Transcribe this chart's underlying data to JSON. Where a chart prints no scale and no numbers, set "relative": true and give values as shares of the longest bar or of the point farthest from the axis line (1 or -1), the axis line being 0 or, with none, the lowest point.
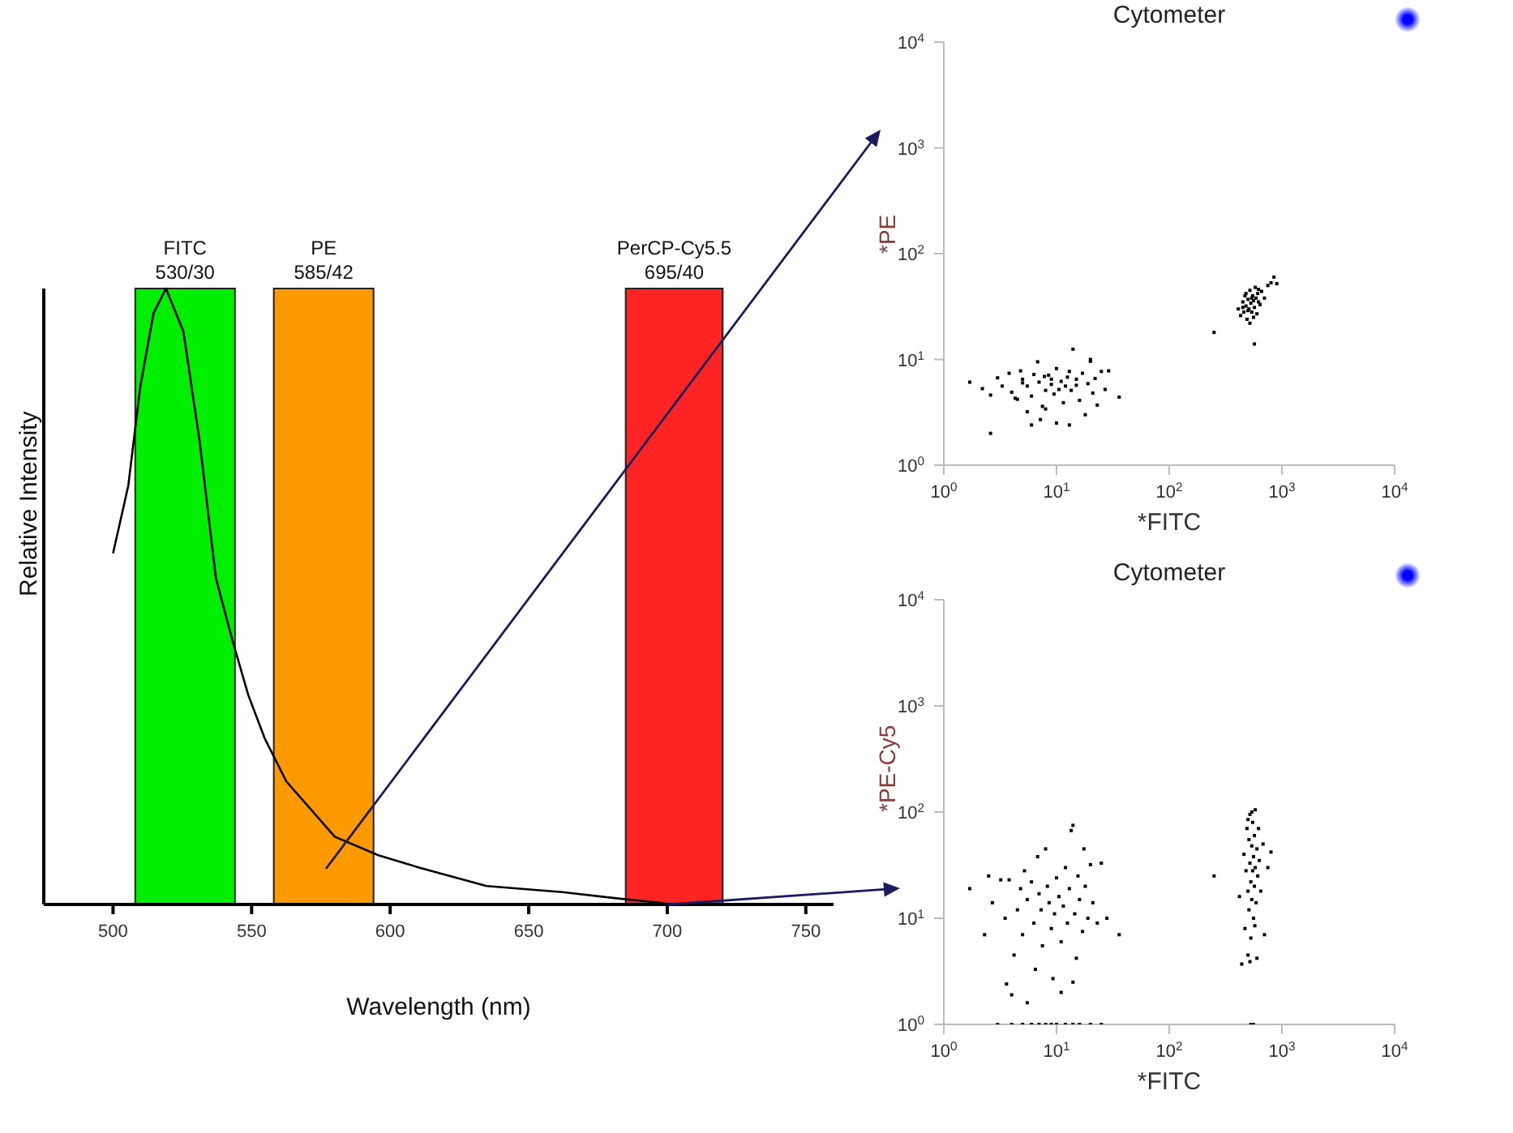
{
  "chart_data": [
    {
      "type": "line",
      "relative": true,
      "xlabel": "Wavelength (nm)",
      "ylabel": "Relative Intensity",
      "xlim": [
        475,
        760
      ],
      "xticks": [
        500,
        550,
        600,
        650,
        700,
        750
      ],
      "series": [
        {
          "color": "#000000",
          "x": [
            500,
            505.5,
            509.8,
            514.6,
            519.1,
            525.4,
            531.3,
            537.1,
            543,
            548.8,
            554.7,
            562.5,
            580,
            595.7,
            610.4,
            634.8,
            662.1,
            681.6,
            697.3,
            701.2
          ],
          "values": [
            0.57,
            0.68,
            0.84,
            0.96,
            1,
            0.93,
            0.75,
            0.53,
            0.43,
            0.34,
            0.27,
            0.2,
            0.11,
            0.08,
            0.06,
            0.03,
            0.02,
            0.01,
            0.003,
            0
          ]
        }
      ],
      "bands": [
        {
          "axis": "x",
          "from": 508,
          "to": 544,
          "label": "FITC\n530/30",
          "color": "#00ee00"
        },
        {
          "axis": "x",
          "from": 558,
          "to": 594,
          "label": "PE\n585/42",
          "color": "#ff9900"
        },
        {
          "axis": "x",
          "from": 685,
          "to": 720,
          "label": "PerCP-Cy5.5\n695/40",
          "color": "#ff2424"
        }
      ]
    },
    {
      "type": "scatter",
      "title": "Cytometer",
      "xlabel": "*FITC",
      "ylabel": "*PE",
      "log": "xy",
      "marker": "square",
      "xlim": [
        1,
        10000
      ],
      "ylim": [
        1,
        10000
      ],
      "xticks": [
        {
          "value": 1,
          "label": "10$^{0}$"
        },
        {
          "value": 10,
          "label": "10$^{1}$"
        },
        {
          "value": 100,
          "label": "10$^{2}$"
        },
        {
          "value": 1000,
          "label": "10$^{3}$"
        },
        {
          "value": 10000,
          "label": "10$^{4}$"
        }
      ],
      "yticks": [
        {
          "value": 1,
          "label": "10$^{0}$"
        },
        {
          "value": 10,
          "label": "10$^{1}$"
        },
        {
          "value": 100,
          "label": "10$^{2}$"
        },
        {
          "value": 1000,
          "label": "10$^{3}$"
        },
        {
          "value": 10000,
          "label": "10$^{4}$"
        }
      ],
      "series": [
        {
          "color": "#000000",
          "x": [
            1.7,
            2.2,
            2.6,
            2.6,
            3,
            3.3,
            3.8,
            4,
            4.5,
            5,
            4.8,
            5.5,
            6,
            6.3,
            6.8,
            7,
            7.5,
            8,
            8.5,
            9,
            9.5,
            10,
            11,
            11.5,
            12,
            13,
            13.5,
            14,
            15,
            16,
            17,
            18,
            19,
            20,
            21,
            22,
            23,
            25,
            27,
            29,
            36,
            6,
            7.2,
            10,
            13,
            5.5,
            8,
            20,
            5,
            4.3,
            9,
            10.5,
            12.5,
            15,
            7.8,
            250,
            570,
            410,
            430,
            450,
            460,
            470,
            480,
            490,
            500,
            510,
            520,
            530,
            540,
            550,
            560,
            570,
            580,
            590,
            600,
            610,
            620,
            640,
            660,
            700,
            750,
            800,
            850,
            900,
            520,
            480,
            560,
            540,
            500,
            620,
            450
          ],
          "values": [
            6.1,
            5.3,
            4.6,
            2,
            6.7,
            5.6,
            7.4,
            4.9,
            4.2,
            6.5,
            7.8,
            5.6,
            4.5,
            7.2,
            9.5,
            6.1,
            3.6,
            5.1,
            7.1,
            5.8,
            4.7,
            8.2,
            6.2,
            3.9,
            5.6,
            7.7,
            5.1,
            12.5,
            6.5,
            4.1,
            7.4,
            3,
            5.9,
            9.6,
            4.8,
            6.6,
            3.7,
            7.7,
            5.2,
            7.8,
            4.4,
            2.4,
            2.7,
            2.5,
            2.4,
            3.2,
            3.4,
            10,
            6,
            4.3,
            6.5,
            5.2,
            6.8,
            5.7,
            6.9,
            18,
            14,
            30,
            26,
            35,
            28,
            40,
            32,
            24,
            37,
            30,
            45,
            34,
            28,
            40,
            36,
            31,
            48,
            38,
            27,
            42,
            35,
            33,
            44,
            38,
            50,
            53,
            60,
            52,
            22,
            42,
            25,
            38,
            29,
            46,
            31
          ]
        }
      ]
    },
    {
      "type": "scatter",
      "title": "Cytometer",
      "xlabel": "*FITC",
      "ylabel": "*PE-Cy5",
      "log": "xy",
      "marker": "square",
      "xlim": [
        1,
        10000
      ],
      "ylim": [
        1,
        10000
      ],
      "xticks": [
        {
          "value": 1,
          "label": "10$^{0}$"
        },
        {
          "value": 10,
          "label": "10$^{1}$"
        },
        {
          "value": 100,
          "label": "10$^{2}$"
        },
        {
          "value": 1000,
          "label": "10$^{3}$"
        },
        {
          "value": 10000,
          "label": "10$^{4}$"
        }
      ],
      "yticks": [
        {
          "value": 1,
          "label": "10$^{0}$"
        },
        {
          "value": 10,
          "label": "10$^{1}$"
        },
        {
          "value": 100,
          "label": "10$^{2}$"
        },
        {
          "value": 1000,
          "label": "10$^{3}$"
        },
        {
          "value": 10000,
          "label": "10$^{4}$"
        }
      ],
      "series": [
        {
          "color": "#000000",
          "x": [
            1.7,
            2.3,
            2.5,
            2.7,
            3.2,
            3.5,
            3.6,
            3.8,
            4,
            4.2,
            4.5,
            4.8,
            5,
            5.2,
            5.5,
            6,
            6.3,
            6.5,
            6.8,
            7,
            7.3,
            7.5,
            8,
            8.3,
            8.6,
            9,
            9.3,
            9.6,
            10,
            10.5,
            11,
            11.5,
            12,
            12.5,
            13,
            13.5,
            14,
            14.5,
            15,
            15.5,
            16,
            17,
            17.5,
            18,
            19,
            20,
            21,
            23,
            25,
            28,
            36,
            4,
            5,
            6,
            7,
            8,
            9,
            10,
            12,
            14,
            16,
            3,
            20,
            25,
            5.5,
            11,
            14,
            250,
            420,
            440,
            460,
            470,
            480,
            490,
            500,
            500,
            510,
            510,
            520,
            520,
            530,
            530,
            540,
            540,
            550,
            550,
            560,
            560,
            570,
            570,
            580,
            580,
            590,
            600,
            610,
            620,
            630,
            650,
            680,
            700,
            750,
            800,
            530,
            560,
            520,
            600,
            540,
            500,
            575
          ],
          "values": [
            19,
            7,
            25,
            14,
            23,
            10,
            2.4,
            23,
            1.9,
            4.5,
            12,
            19,
            7,
            28,
            15,
            22,
            9,
            3.3,
            38,
            17,
            12,
            5.5,
            45,
            20,
            14,
            8,
            2.7,
            11,
            24,
            16,
            6,
            13,
            30,
            9,
            19,
            67,
            75,
            11,
            4.2,
            25,
            15,
            7.5,
            45,
            20,
            10,
            32,
            14,
            9,
            33,
            10,
            7,
            1,
            1,
            1,
            1,
            1,
            1,
            1,
            1,
            1,
            1,
            1,
            1,
            1,
            1.6,
            2,
            2.5,
            25,
            16,
            3.7,
            40,
            8,
            28,
            70,
            18,
            4.5,
            55,
            12,
            33,
            95,
            22,
            6.5,
            48,
            15,
            28,
            80,
            38,
            10,
            20,
            60,
            30,
            105,
            14,
            45,
            25,
            70,
            35,
            18,
            50,
            7,
            30,
            42,
            1,
            1,
            3.9,
            4.2,
            100,
            85,
            8.5
          ]
        }
      ]
    }
  ]
}
